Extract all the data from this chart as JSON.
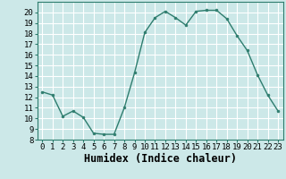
{
  "x": [
    0,
    1,
    2,
    3,
    4,
    5,
    6,
    7,
    8,
    9,
    10,
    11,
    12,
    13,
    14,
    15,
    16,
    17,
    18,
    19,
    20,
    21,
    22,
    23
  ],
  "y": [
    12.5,
    12.2,
    10.2,
    10.7,
    10.1,
    8.6,
    8.5,
    8.5,
    11.0,
    14.3,
    18.1,
    19.5,
    20.1,
    19.5,
    18.8,
    20.1,
    20.2,
    20.2,
    19.4,
    17.8,
    16.4,
    14.1,
    12.2,
    10.7
  ],
  "line_color": "#2e7d6e",
  "marker": "o",
  "marker_size": 2.0,
  "bg_color": "#cce8e8",
  "grid_color": "#ffffff",
  "xlabel": "Humidex (Indice chaleur)",
  "ylim": [
    8,
    21
  ],
  "xlim": [
    -0.5,
    23.5
  ],
  "yticks": [
    8,
    9,
    10,
    11,
    12,
    13,
    14,
    15,
    16,
    17,
    18,
    19,
    20
  ],
  "xticks": [
    0,
    1,
    2,
    3,
    4,
    5,
    6,
    7,
    8,
    9,
    10,
    11,
    12,
    13,
    14,
    15,
    16,
    17,
    18,
    19,
    20,
    21,
    22,
    23
  ],
  "tick_label_fontsize": 6.5,
  "xlabel_fontsize": 8.5,
  "xlabel_fontweight": "bold",
  "linewidth": 1.0
}
